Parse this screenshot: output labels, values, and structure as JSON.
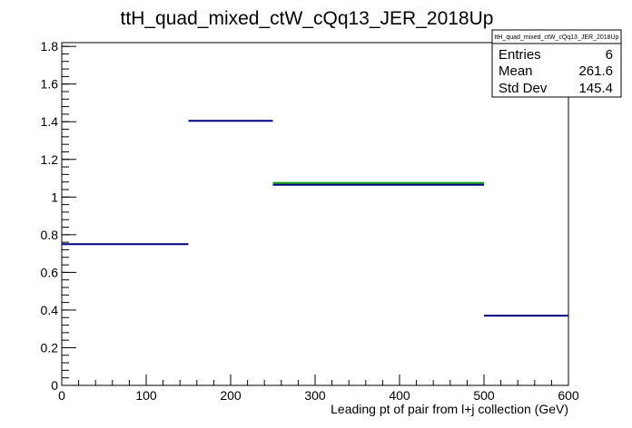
{
  "chart_data": {
    "type": "histogram",
    "title": "ttH_quad_mixed_ctW_cQq13_JER_2018Up",
    "xlabel": "Leading pt of pair from l+j collection (GeV)",
    "ylabel": "",
    "xlim": [
      0,
      600
    ],
    "ylim": [
      0,
      1.82
    ],
    "x_ticks": [
      0,
      100,
      200,
      300,
      400,
      500,
      600
    ],
    "y_ticks": [
      0,
      0.2,
      0.4,
      0.6,
      0.8,
      1,
      1.2,
      1.4,
      1.6,
      1.8
    ],
    "grid": false,
    "series": [
      {
        "color": "#000080",
        "bins": [
          {
            "x_low": 0,
            "x_high": 150,
            "value": 0.75
          },
          {
            "x_low": 150,
            "x_high": 250,
            "value": 1.405
          },
          {
            "x_low": 250,
            "x_high": 500,
            "value": 1.065
          },
          {
            "x_low": 500,
            "x_high": 600,
            "value": 0.37
          }
        ]
      },
      {
        "color": "#00a000",
        "bins": [
          {
            "x_low": 250,
            "x_high": 500,
            "value": 1.075
          }
        ]
      }
    ],
    "stats_box": {
      "title": "ttH_quad_mixed_ctW_cQq13_JER_2018Up",
      "rows": [
        {
          "label": "Entries",
          "value": "6"
        },
        {
          "label": "Mean",
          "value": "261.6"
        },
        {
          "label": "Std Dev",
          "value": "145.4"
        }
      ]
    }
  }
}
